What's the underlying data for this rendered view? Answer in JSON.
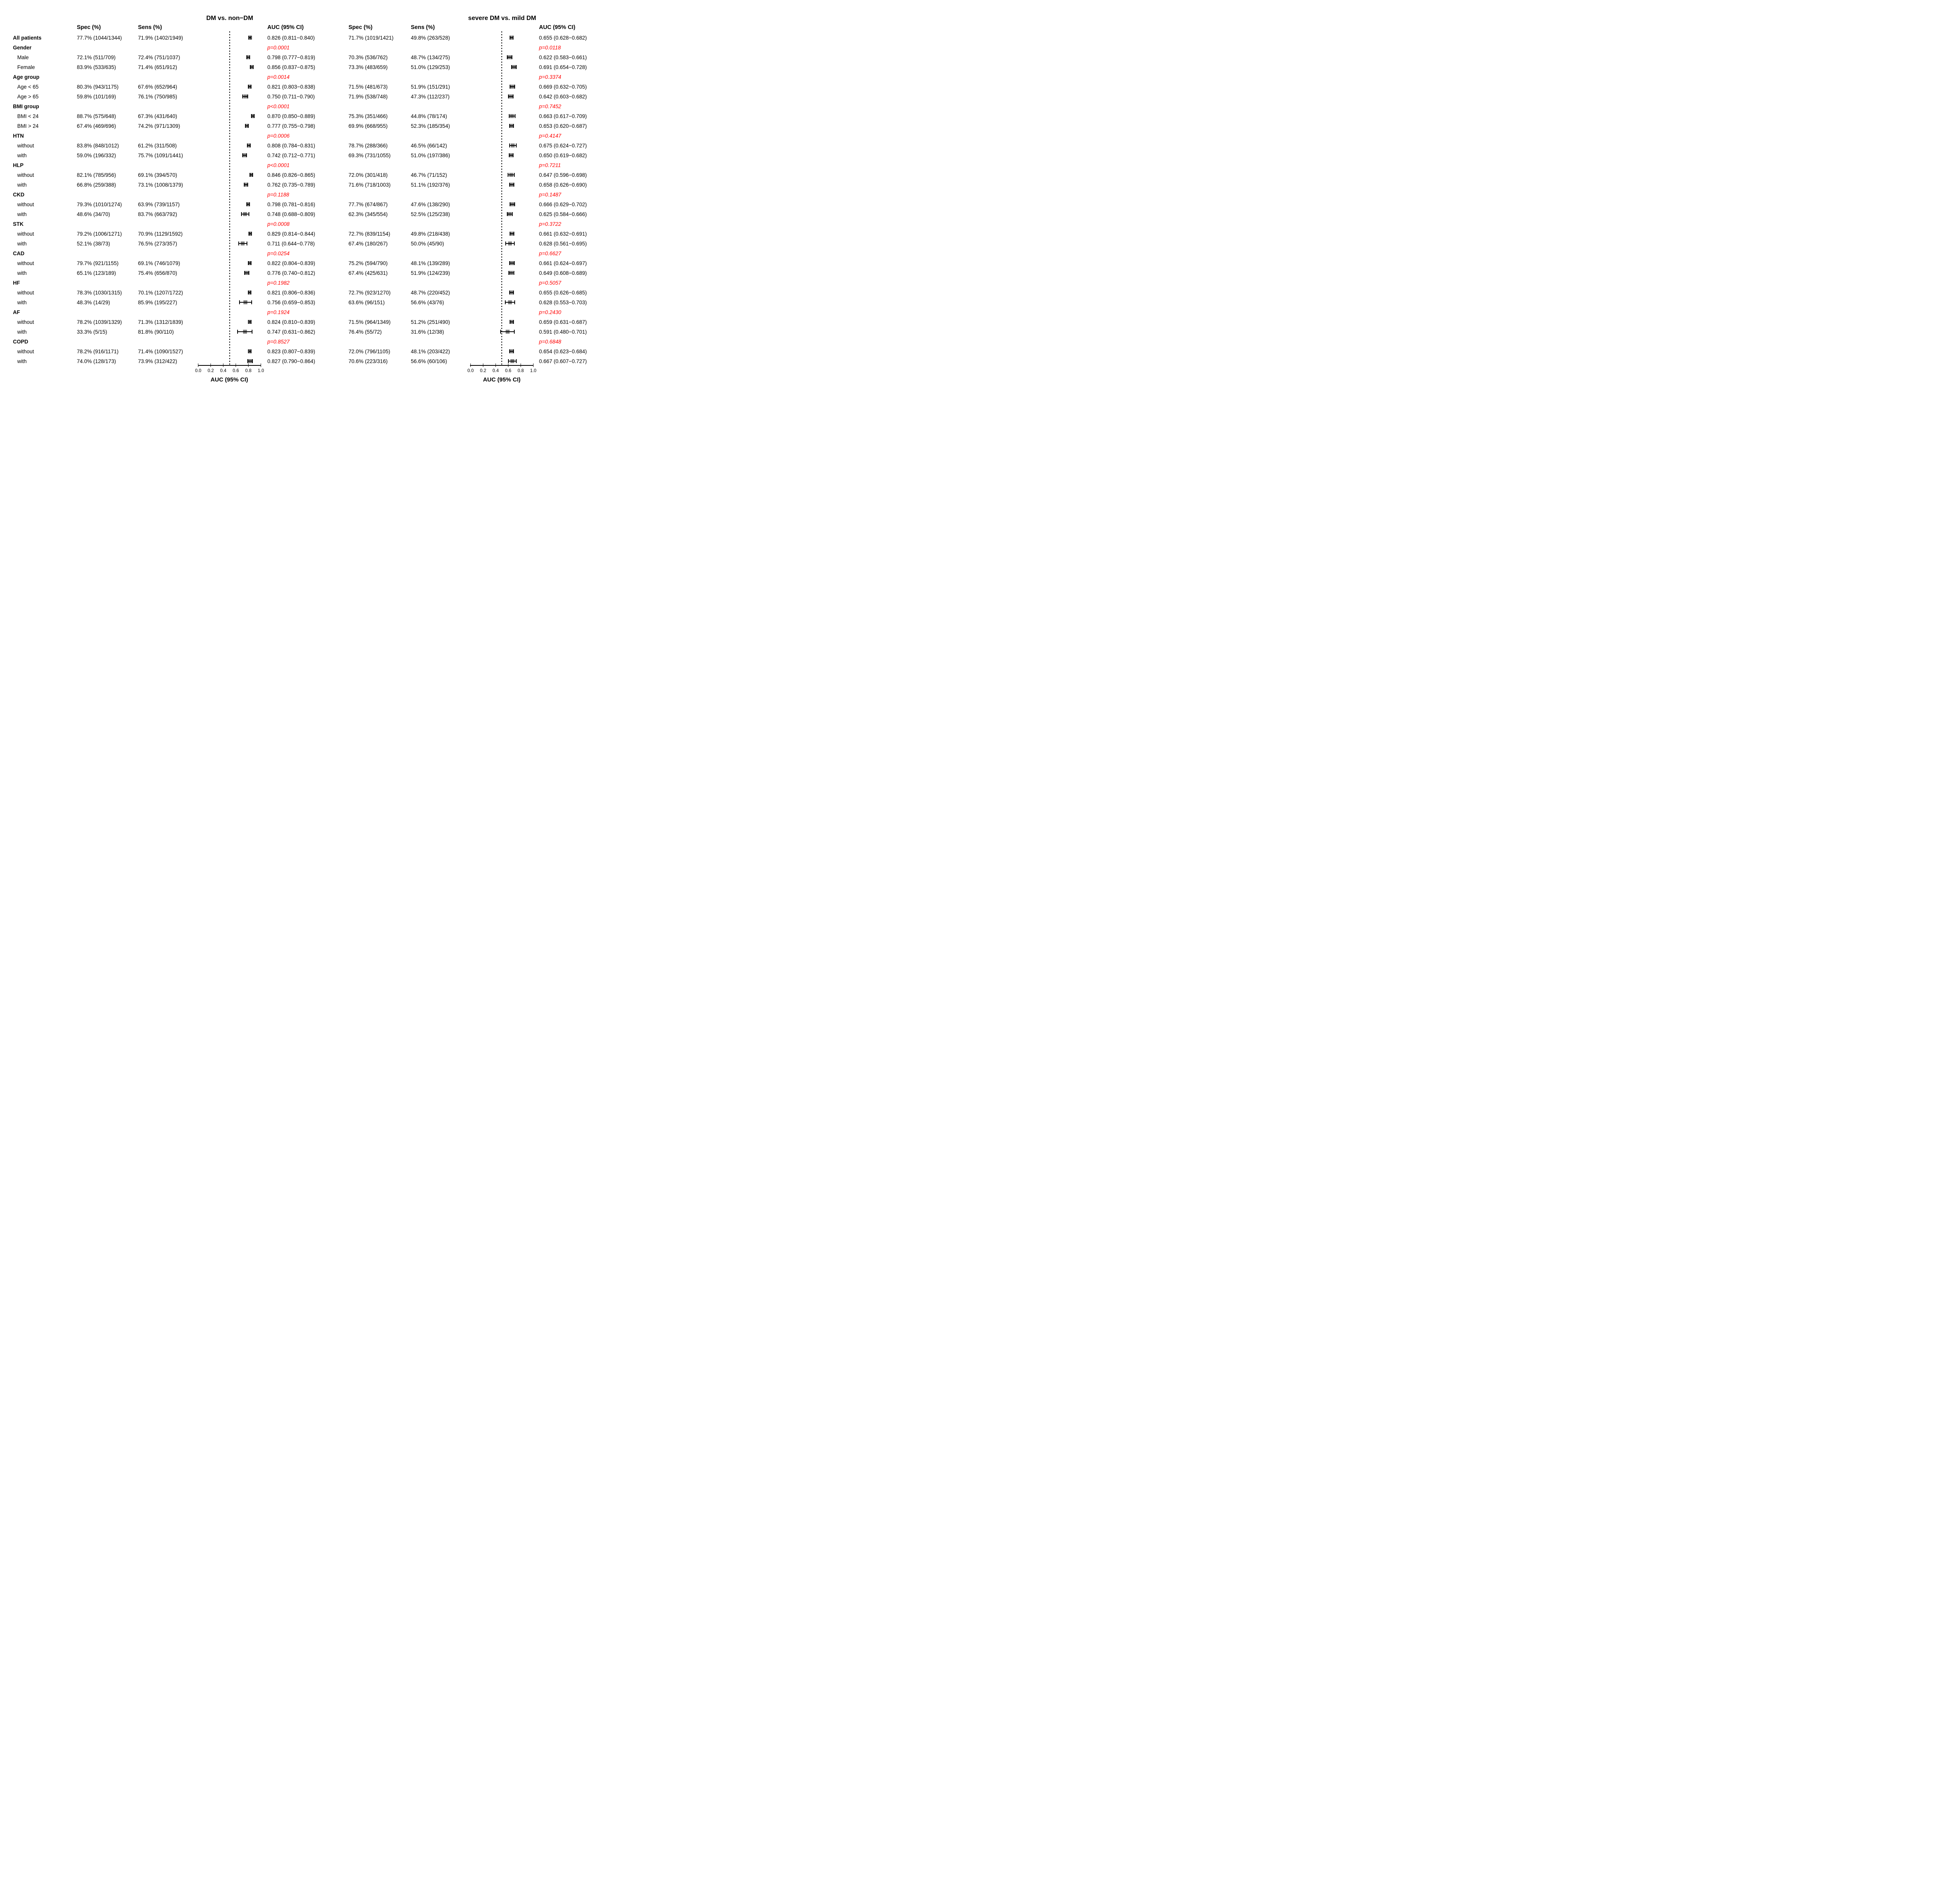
{
  "chart_data": {
    "type": "forest",
    "title_left": "DM vs. non−DM",
    "title_right": "severe DM vs. mild DM",
    "column_headers": {
      "spec": "Spec (%)",
      "sens": "Sens (%)",
      "auc": "AUC (95% CI)"
    },
    "axis": {
      "label": "AUC (95% CI)",
      "tick_labels": [
        "0.0",
        "0.2",
        "0.4",
        "0.6",
        "0.8",
        "1.0"
      ],
      "tick_values": [
        0,
        0.2,
        0.4,
        0.6,
        0.8,
        1.0
      ],
      "range": [
        0,
        1
      ],
      "reference_line": 0.5,
      "grid": false
    },
    "colors": {
      "p_value": "#ff0000",
      "marker_fill": "#808080",
      "line": "#000000",
      "text": "#000000",
      "background": "#ffffff"
    },
    "rows": [
      {
        "label": "All patients",
        "type": "data",
        "bold": true,
        "left": {
          "spec": "77.7% (1044/1344)",
          "sens": "71.9% (1402/1949)",
          "auc": "0.826 (0.811−0.840)",
          "est": 0.826,
          "ci": [
            0.811,
            0.84
          ]
        },
        "right": {
          "spec": "71.7% (1019/1421)",
          "sens": "49.8% (263/528)",
          "auc": "0.655 (0.628−0.682)",
          "est": 0.655,
          "ci": [
            0.628,
            0.682
          ]
        }
      },
      {
        "label": "Gender",
        "type": "group",
        "left": {
          "p": "p=0.0001"
        },
        "right": {
          "p": "p=0.0118"
        }
      },
      {
        "label": "Male",
        "type": "data",
        "indent": true,
        "left": {
          "spec": "72.1% (511/709)",
          "sens": "72.4% (751/1037)",
          "auc": "0.798 (0.777−0.819)",
          "est": 0.798,
          "ci": [
            0.777,
            0.819
          ]
        },
        "right": {
          "spec": "70.3% (536/762)",
          "sens": "48.7% (134/275)",
          "auc": "0.622 (0.583−0.661)",
          "est": 0.622,
          "ci": [
            0.583,
            0.661
          ]
        }
      },
      {
        "label": "Female",
        "type": "data",
        "indent": true,
        "left": {
          "spec": "83.9% (533/635)",
          "sens": "71.4% (651/912)",
          "auc": "0.856 (0.837−0.875)",
          "est": 0.856,
          "ci": [
            0.837,
            0.875
          ]
        },
        "right": {
          "spec": "73.3% (483/659)",
          "sens": "51.0% (129/253)",
          "auc": "0.691 (0.654−0.728)",
          "est": 0.691,
          "ci": [
            0.654,
            0.728
          ]
        }
      },
      {
        "label": "Age group",
        "type": "group",
        "left": {
          "p": "p=0.0014"
        },
        "right": {
          "p": "p=0.3374"
        }
      },
      {
        "label": "Age < 65",
        "type": "data",
        "indent": true,
        "left": {
          "spec": "80.3% (943/1175)",
          "sens": "67.6% (652/964)",
          "auc": "0.821 (0.803−0.838)",
          "est": 0.821,
          "ci": [
            0.803,
            0.838
          ]
        },
        "right": {
          "spec": "71.5% (481/673)",
          "sens": "51.9% (151/291)",
          "auc": "0.669 (0.632−0.705)",
          "est": 0.669,
          "ci": [
            0.632,
            0.705
          ]
        }
      },
      {
        "label": "Age > 65",
        "type": "data",
        "indent": true,
        "left": {
          "spec": "59.8% (101/169)",
          "sens": "76.1% (750/985)",
          "auc": "0.750 (0.711−0.790)",
          "est": 0.75,
          "ci": [
            0.711,
            0.79
          ]
        },
        "right": {
          "spec": "71.9% (538/748)",
          "sens": "47.3% (112/237)",
          "auc": "0.642 (0.603−0.682)",
          "est": 0.642,
          "ci": [
            0.603,
            0.682
          ]
        }
      },
      {
        "label": "BMI group",
        "type": "group",
        "left": {
          "p": "p<0.0001"
        },
        "right": {
          "p": "p=0.7452"
        }
      },
      {
        "label": "BMI < 24",
        "type": "data",
        "indent": true,
        "left": {
          "spec": "88.7% (575/648)",
          "sens": "67.3% (431/640)",
          "auc": "0.870 (0.850−0.889)",
          "est": 0.87,
          "ci": [
            0.85,
            0.889
          ]
        },
        "right": {
          "spec": "75.3% (351/466)",
          "sens": "44.8% (78/174)",
          "auc": "0.663 (0.617−0.709)",
          "est": 0.663,
          "ci": [
            0.617,
            0.709
          ]
        }
      },
      {
        "label": "BMI > 24",
        "type": "data",
        "indent": true,
        "left": {
          "spec": "67.4% (469/696)",
          "sens": "74.2% (971/1309)",
          "auc": "0.777 (0.755−0.798)",
          "est": 0.777,
          "ci": [
            0.755,
            0.798
          ]
        },
        "right": {
          "spec": "69.9% (668/955)",
          "sens": "52.3% (185/354)",
          "auc": "0.653 (0.620−0.687)",
          "est": 0.653,
          "ci": [
            0.62,
            0.687
          ]
        }
      },
      {
        "label": "HTN",
        "type": "group",
        "left": {
          "p": "p=0.0006"
        },
        "right": {
          "p": "p=0.4147"
        }
      },
      {
        "label": "without",
        "type": "data",
        "indent": true,
        "left": {
          "spec": "83.8% (848/1012)",
          "sens": "61.2% (311/508)",
          "auc": "0.808 (0.784−0.831)",
          "est": 0.808,
          "ci": [
            0.784,
            0.831
          ]
        },
        "right": {
          "spec": "78.7% (288/366)",
          "sens": "46.5% (66/142)",
          "auc": "0.675 (0.624−0.727)",
          "est": 0.675,
          "ci": [
            0.624,
            0.727
          ]
        }
      },
      {
        "label": "with",
        "type": "data",
        "indent": true,
        "left": {
          "spec": "59.0% (196/332)",
          "sens": "75.7% (1091/1441)",
          "auc": "0.742 (0.712−0.771)",
          "est": 0.742,
          "ci": [
            0.712,
            0.771
          ]
        },
        "right": {
          "spec": "69.3% (731/1055)",
          "sens": "51.0% (197/386)",
          "auc": "0.650 (0.619−0.682)",
          "est": 0.65,
          "ci": [
            0.619,
            0.682
          ]
        }
      },
      {
        "label": "HLP",
        "type": "group",
        "left": {
          "p": "p<0.0001"
        },
        "right": {
          "p": "p=0.7211"
        }
      },
      {
        "label": "without",
        "type": "data",
        "indent": true,
        "left": {
          "spec": "82.1% (785/956)",
          "sens": "69.1% (394/570)",
          "auc": "0.846 (0.826−0.865)",
          "est": 0.846,
          "ci": [
            0.826,
            0.865
          ]
        },
        "right": {
          "spec": "72.0% (301/418)",
          "sens": "46.7% (71/152)",
          "auc": "0.647 (0.596−0.698)",
          "est": 0.647,
          "ci": [
            0.596,
            0.698
          ]
        }
      },
      {
        "label": "with",
        "type": "data",
        "indent": true,
        "left": {
          "spec": "66.8% (259/388)",
          "sens": "73.1% (1008/1379)",
          "auc": "0.762 (0.735−0.789)",
          "est": 0.762,
          "ci": [
            0.735,
            0.789
          ]
        },
        "right": {
          "spec": "71.6% (718/1003)",
          "sens": "51.1% (192/376)",
          "auc": "0.658 (0.626−0.690)",
          "est": 0.658,
          "ci": [
            0.626,
            0.69
          ]
        }
      },
      {
        "label": "CKD",
        "type": "group",
        "left": {
          "p": "p=0.1188"
        },
        "right": {
          "p": "p=0.1487"
        }
      },
      {
        "label": "without",
        "type": "data",
        "indent": true,
        "left": {
          "spec": "79.3% (1010/1274)",
          "sens": "63.9% (739/1157)",
          "auc": "0.798 (0.781−0.816)",
          "est": 0.798,
          "ci": [
            0.781,
            0.816
          ]
        },
        "right": {
          "spec": "77.7% (674/867)",
          "sens": "47.6% (138/290)",
          "auc": "0.666 (0.629−0.702)",
          "est": 0.666,
          "ci": [
            0.629,
            0.702
          ]
        }
      },
      {
        "label": "with",
        "type": "data",
        "indent": true,
        "left": {
          "spec": "48.6% (34/70)",
          "sens": "83.7% (663/792)",
          "auc": "0.748 (0.688−0.809)",
          "est": 0.748,
          "ci": [
            0.688,
            0.809
          ]
        },
        "right": {
          "spec": "62.3% (345/554)",
          "sens": "52.5% (125/238)",
          "auc": "0.625 (0.584−0.666)",
          "est": 0.625,
          "ci": [
            0.584,
            0.666
          ]
        }
      },
      {
        "label": "STK",
        "type": "group",
        "left": {
          "p": "p=0.0008"
        },
        "right": {
          "p": "p=0.3722"
        }
      },
      {
        "label": "without",
        "type": "data",
        "indent": true,
        "left": {
          "spec": "79.2% (1006/1271)",
          "sens": "70.9% (1129/1592)",
          "auc": "0.829 (0.814−0.844)",
          "est": 0.829,
          "ci": [
            0.814,
            0.844
          ]
        },
        "right": {
          "spec": "72.7% (839/1154)",
          "sens": "49.8% (218/438)",
          "auc": "0.661 (0.632−0.691)",
          "est": 0.661,
          "ci": [
            0.632,
            0.691
          ]
        }
      },
      {
        "label": "with",
        "type": "data",
        "indent": true,
        "left": {
          "spec": "52.1% (38/73)",
          "sens": "76.5% (273/357)",
          "auc": "0.711 (0.644−0.778)",
          "est": 0.711,
          "ci": [
            0.644,
            0.778
          ]
        },
        "right": {
          "spec": "67.4% (180/267)",
          "sens": "50.0% (45/90)",
          "auc": "0.628 (0.561−0.695)",
          "est": 0.628,
          "ci": [
            0.561,
            0.695
          ]
        }
      },
      {
        "label": "CAD",
        "type": "group",
        "left": {
          "p": "p=0.0254"
        },
        "right": {
          "p": "p=0.6627"
        }
      },
      {
        "label": "without",
        "type": "data",
        "indent": true,
        "left": {
          "spec": "79.7% (921/1155)",
          "sens": "69.1% (746/1079)",
          "auc": "0.822 (0.804−0.839)",
          "est": 0.822,
          "ci": [
            0.804,
            0.839
          ]
        },
        "right": {
          "spec": "75.2% (594/790)",
          "sens": "48.1% (139/289)",
          "auc": "0.661 (0.624−0.697)",
          "est": 0.661,
          "ci": [
            0.624,
            0.697
          ]
        }
      },
      {
        "label": "with",
        "type": "data",
        "indent": true,
        "left": {
          "spec": "65.1% (123/189)",
          "sens": "75.4% (656/870)",
          "auc": "0.776 (0.740−0.812)",
          "est": 0.776,
          "ci": [
            0.74,
            0.812
          ]
        },
        "right": {
          "spec": "67.4% (425/631)",
          "sens": "51.9% (124/239)",
          "auc": "0.649 (0.608−0.689)",
          "est": 0.649,
          "ci": [
            0.608,
            0.689
          ]
        }
      },
      {
        "label": "HF",
        "type": "group",
        "left": {
          "p": "p=0.1982"
        },
        "right": {
          "p": "p=0.5057"
        }
      },
      {
        "label": "without",
        "type": "data",
        "indent": true,
        "left": {
          "spec": "78.3% (1030/1315)",
          "sens": "70.1% (1207/1722)",
          "auc": "0.821 (0.806−0.836)",
          "est": 0.821,
          "ci": [
            0.806,
            0.836
          ]
        },
        "right": {
          "spec": "72.7% (923/1270)",
          "sens": "48.7% (220/452)",
          "auc": "0.655 (0.626−0.685)",
          "est": 0.655,
          "ci": [
            0.626,
            0.685
          ]
        }
      },
      {
        "label": "with",
        "type": "data",
        "indent": true,
        "left": {
          "spec": "48.3% (14/29)",
          "sens": "85.9% (195/227)",
          "auc": "0.756 (0.659−0.853)",
          "est": 0.756,
          "ci": [
            0.659,
            0.853
          ]
        },
        "right": {
          "spec": "63.6% (96/151)",
          "sens": "56.6% (43/76)",
          "auc": "0.628 (0.553−0.703)",
          "est": 0.628,
          "ci": [
            0.553,
            0.703
          ]
        }
      },
      {
        "label": "AF",
        "type": "group",
        "left": {
          "p": "p=0.1924"
        },
        "right": {
          "p": "p=0.2430"
        }
      },
      {
        "label": "without",
        "type": "data",
        "indent": true,
        "left": {
          "spec": "78.2% (1039/1329)",
          "sens": "71.3% (1312/1839)",
          "auc": "0.824 (0.810−0.839)",
          "est": 0.824,
          "ci": [
            0.81,
            0.839
          ]
        },
        "right": {
          "spec": "71.5% (964/1349)",
          "sens": "51.2% (251/490)",
          "auc": "0.659 (0.631−0.687)",
          "est": 0.659,
          "ci": [
            0.631,
            0.687
          ]
        }
      },
      {
        "label": "with",
        "type": "data",
        "indent": true,
        "left": {
          "spec": "33.3% (5/15)",
          "sens": "81.8% (90/110)",
          "auc": "0.747 (0.631−0.862)",
          "est": 0.747,
          "ci": [
            0.631,
            0.862
          ]
        },
        "right": {
          "spec": "76.4% (55/72)",
          "sens": "31.6% (12/38)",
          "auc": "0.591 (0.480−0.701)",
          "est": 0.591,
          "ci": [
            0.48,
            0.701
          ]
        }
      },
      {
        "label": "COPD",
        "type": "group",
        "left": {
          "p": "p=0.8527"
        },
        "right": {
          "p": "p=0.6848"
        }
      },
      {
        "label": "without",
        "type": "data",
        "indent": true,
        "left": {
          "spec": "78.2% (916/1171)",
          "sens": "71.4% (1090/1527)",
          "auc": "0.823 (0.807−0.839)",
          "est": 0.823,
          "ci": [
            0.807,
            0.839
          ]
        },
        "right": {
          "spec": "72.0% (796/1105)",
          "sens": "48.1% (203/422)",
          "auc": "0.654 (0.623−0.684)",
          "est": 0.654,
          "ci": [
            0.623,
            0.684
          ]
        }
      },
      {
        "label": "with",
        "type": "data",
        "indent": true,
        "left": {
          "spec": "74.0% (128/173)",
          "sens": "73.9% (312/422)",
          "auc": "0.827 (0.790−0.864)",
          "est": 0.827,
          "ci": [
            0.79,
            0.864
          ]
        },
        "right": {
          "spec": "70.6% (223/316)",
          "sens": "56.6% (60/106)",
          "auc": "0.667 (0.607−0.727)",
          "est": 0.667,
          "ci": [
            0.607,
            0.727
          ]
        }
      }
    ]
  }
}
